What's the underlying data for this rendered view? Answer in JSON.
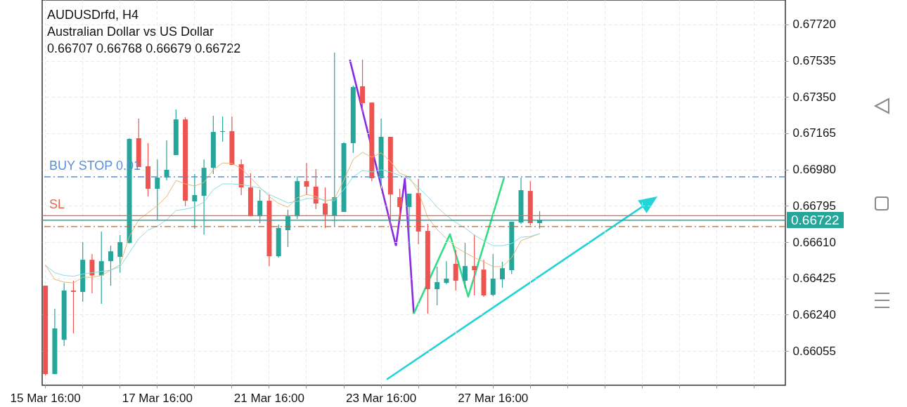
{
  "chart_data": {
    "type": "candlestick",
    "title": "AUDUSDrfd, H4",
    "subtitle": "Australian Dollar vs US Dollar",
    "annotations": [
      "0.66707 0.66768 0.66679 0.66722"
    ],
    "categories": [
      "15 Mar 16:00",
      null,
      null,
      null,
      null,
      null,
      null,
      null,
      null,
      null,
      null,
      null,
      "17 Mar 16:00",
      null,
      null,
      null,
      null,
      null,
      null,
      null,
      null,
      null,
      null,
      null,
      "21 Mar 16:00",
      null,
      null,
      null,
      null,
      null,
      null,
      null,
      null,
      null,
      null,
      null,
      "23 Mar 16:00",
      null,
      null,
      null,
      null,
      null,
      null,
      null,
      null,
      null,
      null,
      null,
      "27 Mar 16:00",
      null,
      null,
      null,
      null,
      null,
      null,
      null,
      null,
      null,
      null,
      null,
      null,
      null,
      null,
      null,
      null,
      null,
      null,
      null,
      null,
      null,
      null,
      null,
      null,
      null,
      null,
      null,
      null,
      null,
      null,
      null
    ],
    "ohlc": [
      [
        0.66388,
        0.66388,
        0.6593,
        0.65937
      ],
      [
        0.65937,
        0.6627,
        0.65937,
        0.6617
      ],
      [
        0.66112,
        0.66402,
        0.6608,
        0.66363
      ],
      [
        0.66363,
        0.66413,
        0.66145,
        0.66356
      ],
      [
        0.66356,
        0.6661,
        0.66306,
        0.6652
      ],
      [
        0.6652,
        0.66549,
        0.66349,
        0.6644
      ],
      [
        0.6644,
        0.66664,
        0.66295,
        0.66513
      ],
      [
        0.66513,
        0.66592,
        0.66388,
        0.66563
      ],
      [
        0.66535,
        0.66646,
        0.66454,
        0.6661
      ],
      [
        0.66606,
        0.6714,
        0.66603,
        0.67136
      ],
      [
        0.6714,
        0.6724,
        0.66993,
        0.66993
      ],
      [
        0.66997,
        0.67115,
        0.66843,
        0.66882
      ],
      [
        0.66882,
        0.67032,
        0.66724,
        0.66939
      ],
      [
        0.66939,
        0.67129,
        0.66925,
        0.66979
      ],
      [
        0.67054,
        0.67287,
        0.67054,
        0.67236
      ],
      [
        0.67236,
        0.67247,
        0.66793,
        0.66821
      ],
      [
        0.66818,
        0.66957,
        0.66678,
        0.6685
      ],
      [
        0.66846,
        0.67032,
        0.66649,
        0.66989
      ],
      [
        0.66989,
        0.67254,
        0.66957,
        0.67172
      ],
      [
        0.67172,
        0.67251,
        0.67122,
        0.67176
      ],
      [
        0.67176,
        0.67251,
        0.67004,
        0.67004
      ],
      [
        0.67007,
        0.67032,
        0.6685,
        0.66889
      ],
      [
        0.66889,
        0.66961,
        0.66742,
        0.66742
      ],
      [
        0.66742,
        0.66878,
        0.66707,
        0.66821
      ],
      [
        0.66821,
        0.66853,
        0.66488,
        0.66538
      ],
      [
        0.66538,
        0.667,
        0.66531,
        0.66682
      ],
      [
        0.66671,
        0.66775,
        0.66585,
        0.66742
      ],
      [
        0.66742,
        0.66946,
        0.66728,
        0.66921
      ],
      [
        0.66921,
        0.67014,
        0.6685,
        0.66893
      ],
      [
        0.66893,
        0.66982,
        0.66778,
        0.66807
      ],
      [
        0.66807,
        0.66889,
        0.66682,
        0.6675
      ],
      [
        0.66746,
        0.67577,
        0.66692,
        0.66839
      ],
      [
        0.66764,
        0.67118,
        0.66764,
        0.67115
      ],
      [
        0.67115,
        0.67408,
        0.67065,
        0.67401
      ],
      [
        0.67405,
        0.67541,
        0.67272,
        0.67319
      ],
      [
        0.67322,
        0.67322,
        0.66921,
        0.66936
      ],
      [
        0.66936,
        0.6724,
        0.66903,
        0.67147
      ],
      [
        0.67147,
        0.67147,
        0.66689,
        0.66853
      ],
      [
        0.66839,
        0.66882,
        0.66717,
        0.66789
      ],
      [
        0.66789,
        0.66857,
        0.66585,
        0.66857
      ],
      [
        0.6686,
        0.66932,
        0.66599,
        0.66664
      ],
      [
        0.66667,
        0.66703,
        0.66245,
        0.6637
      ],
      [
        0.6637,
        0.66485,
        0.66288,
        0.66406
      ],
      [
        0.66402,
        0.66513,
        0.66395,
        0.66424
      ],
      [
        0.66499,
        0.6657,
        0.66363,
        0.66413
      ],
      [
        0.66413,
        0.66606,
        0.66374,
        0.66488
      ],
      [
        0.66488,
        0.66649,
        0.66338,
        0.66467
      ],
      [
        0.6647,
        0.6652,
        0.66331,
        0.66338
      ],
      [
        0.66341,
        0.66549,
        0.66334,
        0.66424
      ],
      [
        0.6642,
        0.6651,
        0.66377,
        0.66477
      ],
      [
        0.66467,
        0.66714,
        0.66447,
        0.66714
      ],
      [
        0.6671,
        0.66939,
        0.66703,
        0.66875
      ],
      [
        0.66871,
        0.66921,
        0.66696,
        0.66707
      ],
      [
        0.66707,
        0.66768,
        0.66679,
        0.66722
      ],
      null,
      null,
      null,
      null,
      null,
      null,
      null,
      null,
      null,
      null,
      null,
      null,
      null,
      null,
      null,
      null,
      null,
      null,
      null,
      null,
      null,
      null,
      null,
      null,
      null,
      null
    ],
    "colors": [
      "#ef5350",
      "#26a69a",
      "#26a69a",
      "#ef5350",
      "#26a69a",
      "#ef5350",
      "#26a69a",
      "#26a69a",
      "#26a69a",
      "#26a69a",
      "#ef5350",
      "#ef5350",
      "#26a69a",
      "#26a69a",
      "#26a69a",
      "#ef5350",
      "#26a69a",
      "#26a69a",
      "#26a69a",
      "#26a69a",
      "#ef5350",
      "#ef5350",
      "#ef5350",
      "#26a69a",
      "#ef5350",
      "#26a69a",
      "#26a69a",
      "#26a69a",
      "#ef5350",
      "#ef5350",
      "#ef5350",
      "#26a69a",
      "#26a69a",
      "#26a69a",
      "#ef5350",
      "#ef5350",
      "#26a69a",
      "#ef5350",
      "#ef5350",
      "#26a69a",
      "#ef5350",
      "#ef5350",
      "#26a69a",
      "#26a69a",
      "#ef5350",
      "#26a69a",
      "#ef5350",
      "#ef5350",
      "#26a69a",
      "#26a69a",
      "#26a69a",
      "#26a69a",
      "#ef5350",
      "#26a69a",
      null,
      null,
      null,
      null,
      null,
      null,
      null,
      null,
      null,
      null,
      null,
      null,
      null,
      null,
      null,
      null,
      null,
      null,
      null,
      null,
      null,
      null,
      null,
      null,
      null,
      null
    ],
    "series": [
      {
        "type": "line",
        "color": "#eab676",
        "values": [
          0.66492,
          0.6642,
          0.66406,
          0.66402,
          0.66431,
          0.66431,
          0.6644,
          0.66467,
          0.66495,
          0.66639,
          0.66724,
          0.6676,
          0.66796,
          0.66843,
          0.66925,
          0.66907,
          0.66896,
          0.66914,
          0.66979,
          0.67014,
          0.67011,
          0.66986,
          0.66939,
          0.66889,
          0.66843,
          0.66807,
          0.66789,
          0.66836,
          0.66853,
          0.66843,
          0.66818,
          0.66832,
          0.66925,
          0.67032,
          0.67068,
          0.67043,
          0.67065,
          0.67021,
          0.66961,
          0.66943,
          0.66868,
          0.66735,
          0.66675,
          0.66628,
          0.66585,
          0.66556,
          0.66531,
          0.6651,
          0.66485,
          0.66485,
          0.66531,
          0.66617,
          0.66635,
          0.66653,
          null,
          null,
          null,
          null,
          null,
          null,
          null,
          null,
          null,
          null,
          null,
          null,
          null,
          null,
          null,
          null,
          null,
          null,
          null,
          null,
          null,
          null,
          null,
          null,
          null,
          null
        ]
      },
      {
        "type": "line",
        "color": "#86dde5",
        "values": [
          0.66492,
          0.66454,
          0.6644,
          0.66436,
          0.66447,
          0.66454,
          0.6646,
          0.66467,
          0.66485,
          0.66556,
          0.66628,
          0.66671,
          0.66692,
          0.66724,
          0.66771,
          0.66778,
          0.66789,
          0.66814,
          0.66878,
          0.66907,
          0.66907,
          0.66903,
          0.66896,
          0.66886,
          0.66853,
          0.66832,
          0.6681,
          0.66818,
          0.66832,
          0.66832,
          0.66825,
          0.66821,
          0.66878,
          0.66943,
          0.66975,
          0.66968,
          0.66979,
          0.66968,
          0.6695,
          0.66932,
          0.66889,
          0.66843,
          0.66789,
          0.66746,
          0.6671,
          0.66682,
          0.66646,
          0.66617,
          0.66592,
          0.66592,
          0.66603,
          0.66635,
          0.66639,
          0.66653,
          null,
          null,
          null,
          null,
          null,
          null,
          null,
          null,
          null,
          null,
          null,
          null,
          null,
          null,
          null,
          null,
          null,
          null,
          null,
          null,
          null,
          null,
          null,
          null,
          null,
          null
        ]
      }
    ],
    "ylim": [
      0.6588,
      0.67845
    ],
    "yticks": [
      0.66055,
      {
        "value": 0.6624,
        "label": "0.66240"
      },
      0.66425,
      {
        "value": 0.6661,
        "label": "0.66610"
      },
      0.66795,
      {
        "value": 0.6698,
        "label": "0.66980"
      },
      0.67165,
      {
        "value": 0.6735,
        "label": "0.67350"
      },
      0.67535,
      {
        "value": 0.6772,
        "label": "0.67720"
      }
    ],
    "grid": true,
    "ref_lines": [
      {
        "axis": "y",
        "value": 0.66943,
        "label": "BUY STOP 0.01",
        "color": "#5b8fd1",
        "line_style": "dashed"
      },
      {
        "axis": "y",
        "value": 0.66745,
        "label": "SL",
        "color": "#e06a4e",
        "line_style": "solid"
      },
      {
        "axis": "y",
        "value": 0.66722,
        "label": "0.66722",
        "color": "#26a69a",
        "line_style": "solid"
      },
      {
        "axis": "y",
        "value": 0.66689,
        "label": null,
        "color": "#b06a3c",
        "line_style": "dashed"
      }
    ]
  }
}
